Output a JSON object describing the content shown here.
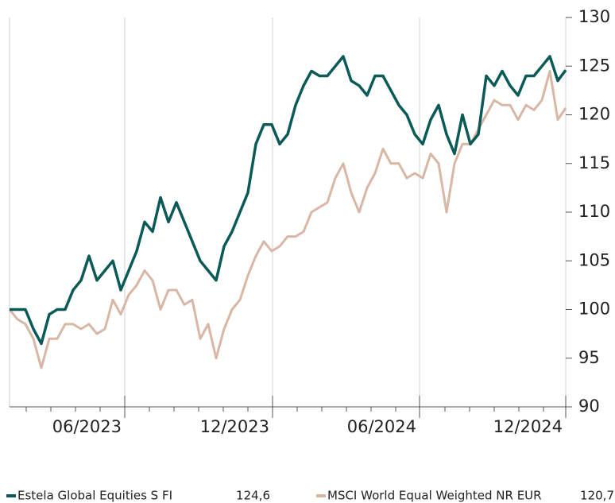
{
  "chart_data": {
    "type": "line",
    "xlim": [
      0,
      70
    ],
    "xticks": [
      {
        "value": 14.5,
        "label": "06/2023"
      },
      {
        "value": 33.1,
        "label": "12/2023"
      },
      {
        "value": 51.6,
        "label": "06/2024"
      },
      {
        "value": 70,
        "label": "12/2024"
      }
    ],
    "ylim": [
      90,
      130
    ],
    "yticks": [
      90,
      95,
      100,
      105,
      110,
      115,
      120,
      125,
      130
    ],
    "grid": "x",
    "legend": "bottom",
    "series": [
      {
        "name": "Estela Global Equities S FI",
        "color": "#0b5a57",
        "value_label": "124,6",
        "values": [
          100,
          100,
          100,
          98,
          96.5,
          99.5,
          100,
          100,
          102,
          103,
          105.5,
          103,
          104,
          105,
          102,
          104,
          106,
          109,
          108,
          111.5,
          109,
          111,
          109,
          107,
          105,
          104,
          103,
          106.5,
          108,
          110,
          112,
          117,
          119,
          119,
          117,
          118,
          121,
          123,
          124.5,
          124,
          124,
          125,
          126,
          123.5,
          123,
          122,
          124,
          124,
          122.5,
          121,
          120,
          118,
          117,
          119.5,
          121,
          118,
          116,
          120,
          117,
          118,
          124,
          123,
          124.5,
          123,
          122,
          124,
          124,
          125,
          126,
          123.5,
          124.6
        ]
      },
      {
        "name": "MSCI World Equal Weighted NR EUR",
        "color": "#d8b7a6",
        "value_label": "120,7",
        "values": [
          100,
          99,
          98.5,
          97,
          94,
          97,
          97,
          98.5,
          98.5,
          98,
          98.5,
          97.5,
          98,
          101,
          99.5,
          101.5,
          102.5,
          104,
          103,
          100,
          102,
          102,
          100.5,
          101,
          97,
          98.5,
          95,
          98,
          100,
          101,
          103.5,
          105.5,
          107,
          106,
          106.5,
          107.5,
          107.5,
          108,
          110,
          110.5,
          111,
          113.5,
          115,
          112,
          110,
          112.5,
          114,
          116.5,
          115,
          115,
          113.5,
          114,
          113.5,
          116,
          115,
          110,
          115,
          117,
          117,
          118.5,
          120,
          121.5,
          121,
          121,
          119.5,
          121,
          120.5,
          121.5,
          124.5,
          119.5,
          120.7
        ]
      }
    ]
  }
}
